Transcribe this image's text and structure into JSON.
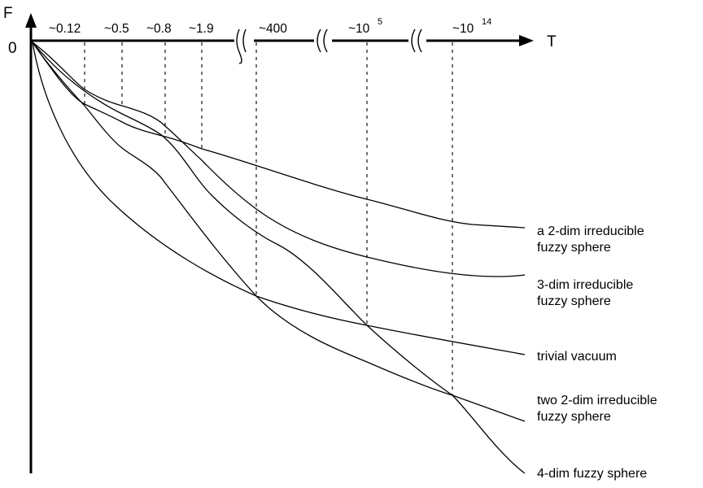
{
  "axes": {
    "y_label": "F",
    "x_label": "T",
    "origin_label": "0"
  },
  "ticks": [
    {
      "label": "~0.12"
    },
    {
      "label": "~0.5"
    },
    {
      "label": "~0.8"
    },
    {
      "label": "~1.9"
    },
    {
      "label": "~400"
    },
    {
      "label": "~10",
      "sup": "5"
    },
    {
      "label": "~10",
      "sup": "14"
    }
  ],
  "curves": [
    {
      "label_lines": [
        "a 2-dim irreducible",
        "fuzzy sphere"
      ]
    },
    {
      "label_lines": [
        "3-dim irreducible",
        "fuzzy sphere"
      ]
    },
    {
      "label_lines": [
        "trivial vacuum"
      ]
    },
    {
      "label_lines": [
        "two 2-dim irreducible",
        "fuzzy sphere"
      ]
    },
    {
      "label_lines": [
        "4-dim fuzzy sphere"
      ]
    }
  ]
}
